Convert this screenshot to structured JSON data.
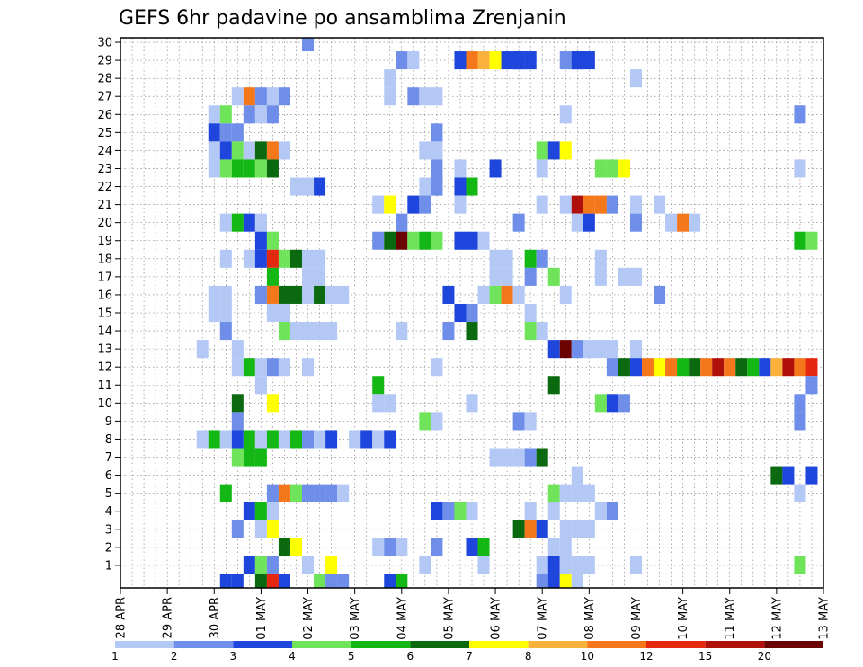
{
  "chart_data": {
    "type": "heatmap",
    "title": "GEFS 6hr padavine po ansamblima Zrenjanin",
    "x_tick_labels": [
      "28 APR",
      "29 APR",
      "30 APR",
      "01 MAY",
      "02 MAY",
      "03 MAY",
      "04 MAY",
      "05 MAY",
      "06 MAY",
      "07 MAY",
      "08 MAY",
      "09 MAY",
      "10 MAY",
      "11 MAY",
      "12 MAY",
      "13 MAY"
    ],
    "y_tick_labels": [
      "1",
      "2",
      "3",
      "4",
      "5",
      "6",
      "7",
      "8",
      "9",
      "10",
      "11",
      "12",
      "13",
      "14",
      "15",
      "16",
      "17",
      "18",
      "19",
      "20",
      "21",
      "22",
      "23",
      "24",
      "25",
      "26",
      "27",
      "28",
      "29",
      "30"
    ],
    "time_steps": 61,
    "members": 30,
    "grid": true,
    "colorbar": {
      "labels": [
        "1",
        "2",
        "3",
        "4",
        "5",
        "6",
        "7",
        "8",
        "10",
        "12",
        "15",
        "20"
      ],
      "colors": [
        "#b4c8f5",
        "#6e8ee9",
        "#1f46dc",
        "#6fe45b",
        "#14b814",
        "#0b6a10",
        "#ffff00",
        "#fbb23c",
        "#f4771c",
        "#e4280f",
        "#b0100a",
        "#6a0202"
      ]
    },
    "cells": [
      [
        16,
        30,
        2
      ],
      [
        24,
        29,
        2
      ],
      [
        25,
        29,
        1
      ],
      [
        29,
        29,
        3
      ],
      [
        35,
        29,
        1
      ],
      [
        39,
        29,
        3
      ],
      [
        38,
        29,
        2
      ],
      [
        39,
        29,
        3
      ],
      [
        40,
        29,
        3
      ],
      [
        30,
        29,
        9
      ],
      [
        31,
        29,
        8
      ],
      [
        32,
        29,
        7
      ],
      [
        33,
        29,
        3
      ],
      [
        34,
        29,
        3
      ],
      [
        34,
        29,
        3
      ],
      [
        35,
        29,
        3
      ],
      [
        23,
        28,
        1
      ],
      [
        44,
        28,
        1
      ],
      [
        10,
        27,
        1
      ],
      [
        11,
        27,
        9
      ],
      [
        12,
        27,
        2
      ],
      [
        13,
        27,
        1
      ],
      [
        14,
        27,
        2
      ],
      [
        23,
        27,
        1
      ],
      [
        25,
        27,
        2
      ],
      [
        26,
        27,
        1
      ],
      [
        27,
        27,
        1
      ],
      [
        8,
        26,
        1
      ],
      [
        9,
        26,
        4
      ],
      [
        11,
        26,
        2
      ],
      [
        12,
        26,
        1
      ],
      [
        13,
        26,
        2
      ],
      [
        38,
        26,
        1
      ],
      [
        58,
        26,
        2
      ],
      [
        8,
        25,
        3
      ],
      [
        9,
        25,
        2
      ],
      [
        10,
        25,
        2
      ],
      [
        27,
        25,
        2
      ],
      [
        8,
        24,
        1
      ],
      [
        9,
        24,
        3
      ],
      [
        10,
        24,
        4
      ],
      [
        11,
        24,
        1
      ],
      [
        12,
        24,
        6
      ],
      [
        13,
        24,
        9
      ],
      [
        14,
        24,
        1
      ],
      [
        26,
        24,
        1
      ],
      [
        27,
        24,
        1
      ],
      [
        36,
        24,
        4
      ],
      [
        37,
        24,
        3
      ],
      [
        38,
        24,
        7
      ],
      [
        8,
        23,
        1
      ],
      [
        9,
        23,
        4
      ],
      [
        10,
        23,
        5
      ],
      [
        11,
        23,
        5
      ],
      [
        12,
        23,
        4
      ],
      [
        13,
        23,
        6
      ],
      [
        27,
        23,
        2
      ],
      [
        29,
        23,
        1
      ],
      [
        32,
        23,
        3
      ],
      [
        36,
        23,
        1
      ],
      [
        41,
        23,
        4
      ],
      [
        42,
        23,
        4
      ],
      [
        43,
        23,
        7
      ],
      [
        58,
        23,
        1
      ],
      [
        15,
        22,
        1
      ],
      [
        16,
        22,
        1
      ],
      [
        17,
        22,
        3
      ],
      [
        26,
        22,
        1
      ],
      [
        27,
        22,
        2
      ],
      [
        29,
        22,
        3
      ],
      [
        30,
        22,
        5
      ],
      [
        27,
        22,
        2
      ],
      [
        22,
        21,
        1
      ],
      [
        23,
        21,
        7
      ],
      [
        25,
        21,
        3
      ],
      [
        26,
        21,
        2
      ],
      [
        29,
        21,
        1
      ],
      [
        36,
        21,
        1
      ],
      [
        38,
        21,
        1
      ],
      [
        39,
        21,
        11
      ],
      [
        40,
        21,
        9
      ],
      [
        41,
        21,
        9
      ],
      [
        42,
        21,
        2
      ],
      [
        44,
        21,
        1
      ],
      [
        46,
        21,
        1
      ],
      [
        9,
        20,
        1
      ],
      [
        10,
        20,
        5
      ],
      [
        11,
        20,
        3
      ],
      [
        12,
        20,
        1
      ],
      [
        24,
        20,
        2
      ],
      [
        34,
        20,
        2
      ],
      [
        39,
        20,
        1
      ],
      [
        40,
        20,
        3
      ],
      [
        44,
        20,
        2
      ],
      [
        47,
        20,
        1
      ],
      [
        48,
        20,
        9
      ],
      [
        49,
        20,
        1
      ],
      [
        12,
        19,
        3
      ],
      [
        13,
        19,
        4
      ],
      [
        22,
        19,
        2
      ],
      [
        23,
        19,
        6
      ],
      [
        24,
        19,
        12
      ],
      [
        25,
        19,
        4
      ],
      [
        26,
        19,
        5
      ],
      [
        27,
        19,
        4
      ],
      [
        29,
        19,
        3
      ],
      [
        30,
        19,
        3
      ],
      [
        31,
        19,
        1
      ],
      [
        58,
        19,
        5
      ],
      [
        59,
        19,
        4
      ],
      [
        9,
        18,
        1
      ],
      [
        11,
        18,
        1
      ],
      [
        12,
        18,
        3
      ],
      [
        13,
        18,
        10
      ],
      [
        14,
        18,
        4
      ],
      [
        15,
        18,
        6
      ],
      [
        16,
        18,
        1
      ],
      [
        17,
        18,
        1
      ],
      [
        32,
        18,
        1
      ],
      [
        33,
        18,
        1
      ],
      [
        35,
        18,
        5
      ],
      [
        36,
        18,
        2
      ],
      [
        41,
        18,
        1
      ],
      [
        13,
        17,
        5
      ],
      [
        16,
        17,
        1
      ],
      [
        17,
        17,
        1
      ],
      [
        32,
        17,
        1
      ],
      [
        33,
        17,
        1
      ],
      [
        35,
        17,
        2
      ],
      [
        37,
        17,
        4
      ],
      [
        41,
        17,
        1
      ],
      [
        43,
        17,
        1
      ],
      [
        44,
        17,
        1
      ],
      [
        8,
        16,
        1
      ],
      [
        9,
        16,
        1
      ],
      [
        12,
        16,
        2
      ],
      [
        13,
        16,
        9
      ],
      [
        14,
        16,
        6
      ],
      [
        15,
        16,
        6
      ],
      [
        16,
        16,
        1
      ],
      [
        17,
        16,
        6
      ],
      [
        18,
        16,
        1
      ],
      [
        19,
        16,
        1
      ],
      [
        28,
        16,
        3
      ],
      [
        31,
        16,
        1
      ],
      [
        32,
        16,
        4
      ],
      [
        33,
        16,
        9
      ],
      [
        34,
        16,
        1
      ],
      [
        38,
        16,
        1
      ],
      [
        46,
        16,
        2
      ],
      [
        8,
        15,
        1
      ],
      [
        9,
        15,
        1
      ],
      [
        13,
        15,
        1
      ],
      [
        14,
        15,
        1
      ],
      [
        29,
        15,
        3
      ],
      [
        30,
        15,
        2
      ],
      [
        35,
        15,
        1
      ],
      [
        9,
        14,
        2
      ],
      [
        14,
        14,
        4
      ],
      [
        15,
        14,
        1
      ],
      [
        16,
        14,
        1
      ],
      [
        17,
        14,
        1
      ],
      [
        18,
        14,
        1
      ],
      [
        24,
        14,
        1
      ],
      [
        28,
        14,
        2
      ],
      [
        30,
        14,
        6
      ],
      [
        35,
        14,
        4
      ],
      [
        36,
        14,
        1
      ],
      [
        7,
        13,
        1
      ],
      [
        10,
        13,
        1
      ],
      [
        37,
        13,
        3
      ],
      [
        38,
        13,
        12
      ],
      [
        39,
        13,
        2
      ],
      [
        40,
        13,
        1
      ],
      [
        41,
        13,
        1
      ],
      [
        42,
        13,
        1
      ],
      [
        44,
        13,
        1
      ],
      [
        10,
        12,
        1
      ],
      [
        11,
        12,
        5
      ],
      [
        12,
        12,
        1
      ],
      [
        13,
        12,
        2
      ],
      [
        14,
        12,
        1
      ],
      [
        16,
        12,
        1
      ],
      [
        27,
        12,
        1
      ],
      [
        42,
        12,
        2
      ],
      [
        43,
        12,
        6
      ],
      [
        44,
        12,
        3
      ],
      [
        45,
        12,
        9
      ],
      [
        46,
        12,
        7
      ],
      [
        47,
        12,
        9
      ],
      [
        48,
        12,
        5
      ],
      [
        49,
        12,
        6
      ],
      [
        50,
        12,
        9
      ],
      [
        51,
        12,
        11
      ],
      [
        52,
        12,
        9
      ],
      [
        53,
        12,
        6
      ],
      [
        54,
        12,
        5
      ],
      [
        55,
        12,
        3
      ],
      [
        56,
        12,
        8
      ],
      [
        57,
        12,
        11
      ],
      [
        58,
        12,
        9
      ],
      [
        59,
        12,
        10
      ],
      [
        12,
        11,
        1
      ],
      [
        22,
        11,
        5
      ],
      [
        37,
        11,
        6
      ],
      [
        59,
        11,
        2
      ],
      [
        10,
        10,
        6
      ],
      [
        13,
        10,
        7
      ],
      [
        22,
        10,
        1
      ],
      [
        23,
        10,
        1
      ],
      [
        30,
        10,
        1
      ],
      [
        41,
        10,
        4
      ],
      [
        42,
        10,
        3
      ],
      [
        43,
        10,
        2
      ],
      [
        58,
        10,
        2
      ],
      [
        10,
        9,
        2
      ],
      [
        26,
        9,
        4
      ],
      [
        27,
        9,
        1
      ],
      [
        34,
        9,
        2
      ],
      [
        35,
        9,
        1
      ],
      [
        58,
        9,
        2
      ],
      [
        7,
        8,
        1
      ],
      [
        8,
        8,
        5
      ],
      [
        9,
        8,
        1
      ],
      [
        10,
        8,
        3
      ],
      [
        11,
        8,
        5
      ],
      [
        12,
        8,
        1
      ],
      [
        13,
        8,
        5
      ],
      [
        14,
        8,
        1
      ],
      [
        15,
        8,
        5
      ],
      [
        16,
        8,
        2
      ],
      [
        17,
        8,
        1
      ],
      [
        18,
        8,
        3
      ],
      [
        20,
        8,
        1
      ],
      [
        21,
        8,
        3
      ],
      [
        22,
        8,
        1
      ],
      [
        23,
        8,
        3
      ],
      [
        10,
        7,
        4
      ],
      [
        11,
        7,
        5
      ],
      [
        12,
        7,
        5
      ],
      [
        32,
        7,
        1
      ],
      [
        33,
        7,
        1
      ],
      [
        34,
        7,
        1
      ],
      [
        35,
        7,
        2
      ],
      [
        36,
        7,
        6
      ],
      [
        39,
        6,
        1
      ],
      [
        56,
        6,
        6
      ],
      [
        57,
        6,
        3
      ],
      [
        59,
        6,
        3
      ],
      [
        9,
        5,
        5
      ],
      [
        13,
        5,
        2
      ],
      [
        14,
        5,
        9
      ],
      [
        15,
        5,
        4
      ],
      [
        16,
        5,
        2
      ],
      [
        17,
        5,
        2
      ],
      [
        18,
        5,
        2
      ],
      [
        19,
        5,
        1
      ],
      [
        37,
        5,
        4
      ],
      [
        38,
        5,
        1
      ],
      [
        39,
        5,
        1
      ],
      [
        40,
        5,
        1
      ],
      [
        58,
        5,
        1
      ],
      [
        11,
        4,
        3
      ],
      [
        12,
        4,
        5
      ],
      [
        13,
        4,
        1
      ],
      [
        27,
        4,
        3
      ],
      [
        28,
        4,
        2
      ],
      [
        29,
        4,
        4
      ],
      [
        30,
        4,
        1
      ],
      [
        35,
        4,
        1
      ],
      [
        37,
        4,
        1
      ],
      [
        41,
        4,
        1
      ],
      [
        42,
        4,
        2
      ],
      [
        10,
        3,
        2
      ],
      [
        12,
        3,
        1
      ],
      [
        13,
        3,
        7
      ],
      [
        34,
        3,
        6
      ],
      [
        35,
        3,
        9
      ],
      [
        36,
        3,
        3
      ],
      [
        38,
        3,
        1
      ],
      [
        39,
        3,
        1
      ],
      [
        40,
        3,
        1
      ],
      [
        14,
        2,
        6
      ],
      [
        15,
        2,
        7
      ],
      [
        22,
        2,
        1
      ],
      [
        23,
        2,
        2
      ],
      [
        24,
        2,
        1
      ],
      [
        27,
        2,
        2
      ],
      [
        30,
        2,
        3
      ],
      [
        31,
        2,
        5
      ],
      [
        37,
        2,
        1
      ],
      [
        38,
        2,
        1
      ],
      [
        11,
        1,
        3
      ],
      [
        12,
        1,
        4
      ],
      [
        13,
        1,
        2
      ],
      [
        16,
        1,
        1
      ],
      [
        18,
        1,
        7
      ],
      [
        26,
        1,
        1
      ],
      [
        31,
        1,
        1
      ],
      [
        36,
        1,
        1
      ],
      [
        37,
        1,
        3
      ],
      [
        38,
        1,
        1
      ],
      [
        39,
        1,
        1
      ],
      [
        40,
        1,
        1
      ],
      [
        44,
        1,
        1
      ],
      [
        58,
        1,
        4
      ],
      [
        9,
        0,
        3
      ],
      [
        10,
        0,
        3
      ],
      [
        12,
        0,
        6
      ],
      [
        13,
        0,
        10
      ],
      [
        14,
        0,
        3
      ],
      [
        17,
        0,
        4
      ],
      [
        18,
        0,
        2
      ],
      [
        19,
        0,
        2
      ],
      [
        23,
        0,
        3
      ],
      [
        24,
        0,
        5
      ],
      [
        36,
        0,
        2
      ],
      [
        37,
        0,
        3
      ],
      [
        38,
        0,
        7
      ],
      [
        39,
        0,
        1
      ]
    ]
  }
}
